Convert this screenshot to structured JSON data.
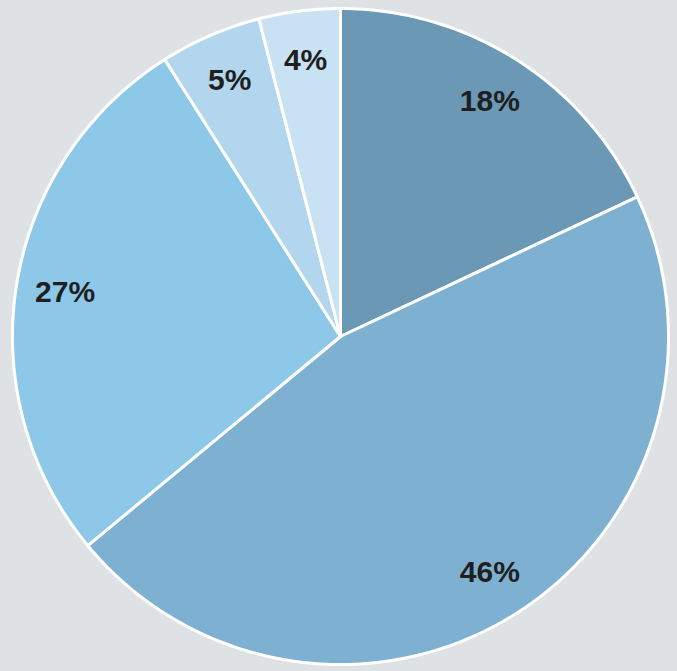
{
  "chart_data": {
    "type": "pie",
    "values": [
      18,
      46,
      27,
      5,
      4
    ],
    "value_labels": [
      "18%",
      "46%",
      "27%",
      "5%",
      "4%"
    ],
    "colors": [
      "#6a98b5",
      "#7eb0d1",
      "#8ec8e9",
      "#b2d6ee",
      "#c8e1f3"
    ],
    "data_labels": true
  }
}
